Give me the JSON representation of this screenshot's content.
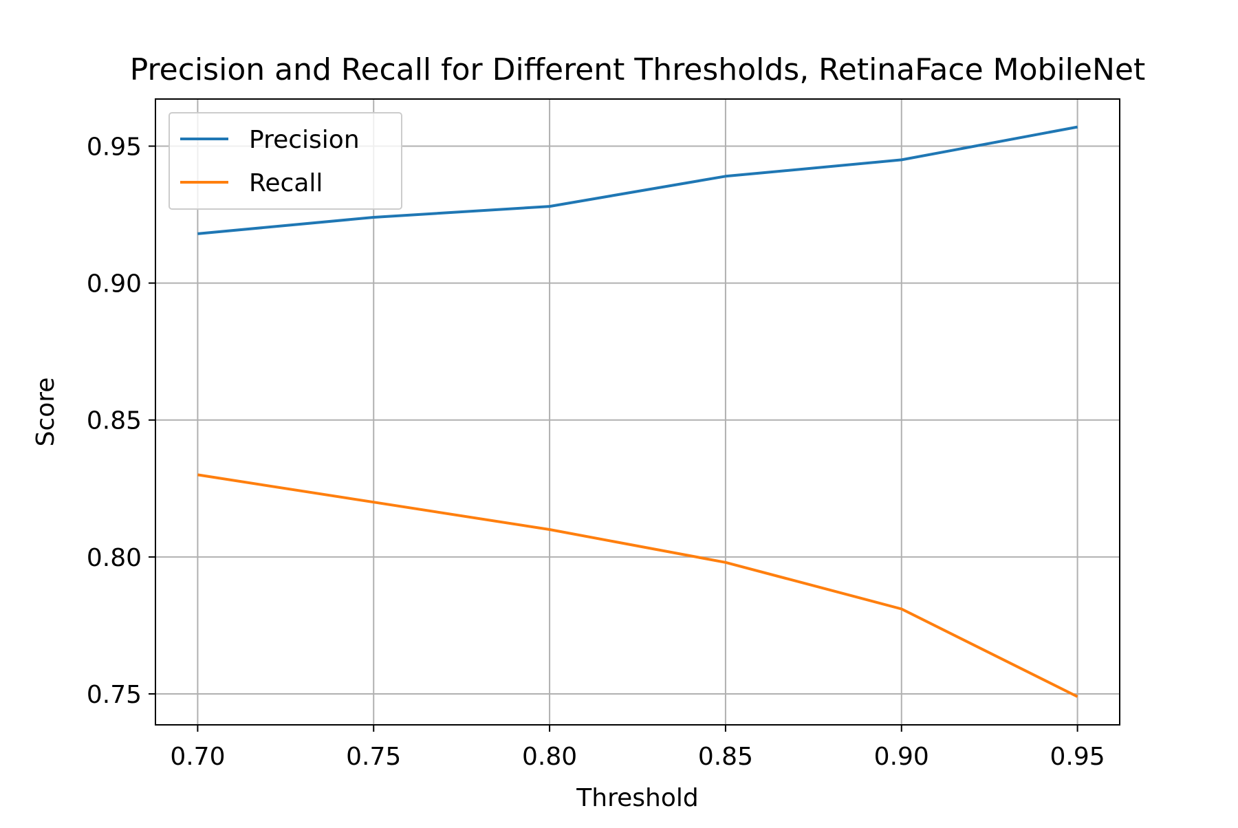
{
  "chart_data": {
    "type": "line",
    "title": "Precision and Recall for Different Thresholds, RetinaFace MobileNet",
    "xlabel": "Threshold",
    "ylabel": "Score",
    "x": [
      0.7,
      0.75,
      0.8,
      0.85,
      0.9,
      0.95
    ],
    "x_tick_labels": [
      "0.70",
      "0.75",
      "0.80",
      "0.85",
      "0.90",
      "0.95"
    ],
    "y_tick_values": [
      0.75,
      0.8,
      0.85,
      0.9,
      0.95
    ],
    "y_tick_labels": [
      "0.75",
      "0.80",
      "0.85",
      "0.90",
      "0.95"
    ],
    "xlim": [
      0.688,
      0.962
    ],
    "ylim": [
      0.7387,
      0.9672
    ],
    "grid": true,
    "legend_position": "upper-left",
    "series": [
      {
        "name": "Precision",
        "color": "#1f77b4",
        "values": [
          0.918,
          0.924,
          0.928,
          0.939,
          0.945,
          0.957
        ]
      },
      {
        "name": "Recall",
        "color": "#ff7f0e",
        "values": [
          0.83,
          0.82,
          0.81,
          0.798,
          0.781,
          0.749
        ]
      }
    ]
  }
}
